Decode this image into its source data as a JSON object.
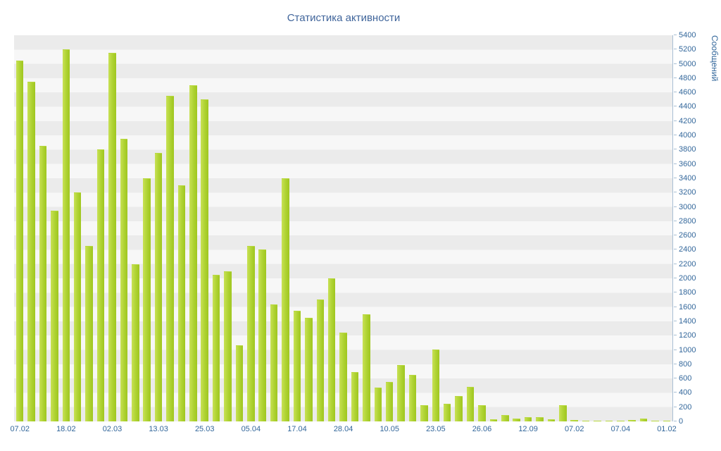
{
  "title": "Статистика активности",
  "colors": {
    "bar": "#aed232",
    "bar_light": "#c8e155",
    "bar_dark": "#9fc61f",
    "axis_text": "#33679b",
    "title_text": "#40659b",
    "stripe_dark": "#ebebeb",
    "stripe_light": "#f7f7f7",
    "axis_line": "#a8bfd4"
  },
  "chart_data": {
    "type": "bar",
    "title": "Статистика активности",
    "ylabel": "Сообщений",
    "xlabel": "",
    "ylim": [
      0,
      5400
    ],
    "ytick_step": 200,
    "grid": "horizontal-bands",
    "legend": "none",
    "x_tick_labels": [
      "07.02",
      "18.02",
      "02.03",
      "13.03",
      "25.03",
      "05.04",
      "17.04",
      "28.04",
      "10.05",
      "23.05",
      "26.06",
      "12.09",
      "07.02",
      "07.04",
      "01.02"
    ],
    "label_every": 4,
    "values": [
      5050,
      4750,
      3850,
      2950,
      5200,
      3200,
      2450,
      3800,
      5150,
      3950,
      2200,
      3400,
      3750,
      4550,
      3300,
      4700,
      4500,
      2050,
      2100,
      1060,
      2450,
      2400,
      1640,
      3400,
      1550,
      1450,
      1700,
      2000,
      1240,
      690,
      1500,
      470,
      550,
      790,
      650,
      230,
      1010,
      250,
      350,
      480,
      230,
      30,
      90,
      40,
      60,
      60,
      30,
      230,
      20,
      10,
      5,
      10,
      5,
      15,
      40,
      5,
      10
    ]
  }
}
